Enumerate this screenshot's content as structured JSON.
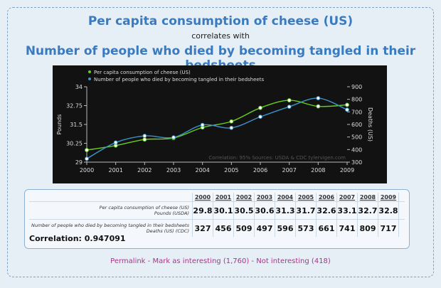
{
  "title_line1": "Per capita consumption of cheese (US)",
  "title_mid": "correlates with",
  "title_line2": "Number of people who died by becoming tangled in their bedsheets",
  "chart_data": {
    "type": "line",
    "x": [
      2000,
      2001,
      2002,
      2003,
      2004,
      2005,
      2006,
      2007,
      2008,
      2009
    ],
    "series": [
      {
        "name": "Per capita consumption of cheese (US)",
        "color": "#66d11a",
        "axis": "left",
        "values": [
          29.8,
          30.1,
          30.5,
          30.6,
          31.3,
          31.7,
          32.6,
          33.1,
          32.7,
          32.8
        ]
      },
      {
        "name": "Number of people who died by becoming tangled in their bedsheets",
        "color": "#3d93c9",
        "axis": "right",
        "values": [
          327,
          456,
          509,
          497,
          596,
          573,
          661,
          741,
          809,
          717
        ]
      }
    ],
    "ylabel_left": "Pounds",
    "ylabel_right": "Deaths (US)",
    "ylim_left": [
      29,
      34
    ],
    "yticks_left": [
      "29",
      "30.25",
      "31.5",
      "32.75",
      "34"
    ],
    "ylim_right": [
      300,
      900
    ],
    "yticks_right": [
      "300",
      "400",
      "500",
      "600",
      "700",
      "800",
      "900"
    ],
    "xticks": [
      "2000",
      "2001",
      "2002",
      "2003",
      "2004",
      "2005",
      "2006",
      "2007",
      "2008",
      "2009"
    ],
    "legend_position": "top-left",
    "grid": false,
    "watermark": "Correlation: 95%   Sources: USDA & CDC   tylervigen.com"
  },
  "table": {
    "years": [
      "2000",
      "2001",
      "2002",
      "2003",
      "2004",
      "2005",
      "2006",
      "2007",
      "2008",
      "2009"
    ],
    "row1_label_line1": "Per capita consumption of cheese (US)",
    "row1_label_line2": "Pounds (USDA)",
    "row1_values": [
      "29.8",
      "30.1",
      "30.5",
      "30.6",
      "31.3",
      "31.7",
      "32.6",
      "33.1",
      "32.7",
      "32.8"
    ],
    "row2_label_line1": "Number of people who died by becoming tangled in their bedsheets",
    "row2_label_line2": "Deaths (US) (CDC)",
    "row2_values": [
      "327",
      "456",
      "509",
      "497",
      "596",
      "573",
      "661",
      "741",
      "809",
      "717"
    ]
  },
  "correlation_text": "Correlation: 0.947091",
  "footer": {
    "permalink": "Permalink",
    "sep": " - ",
    "mark": "Mark as interesting (1,760)",
    "not": "Not interesting (418)"
  }
}
